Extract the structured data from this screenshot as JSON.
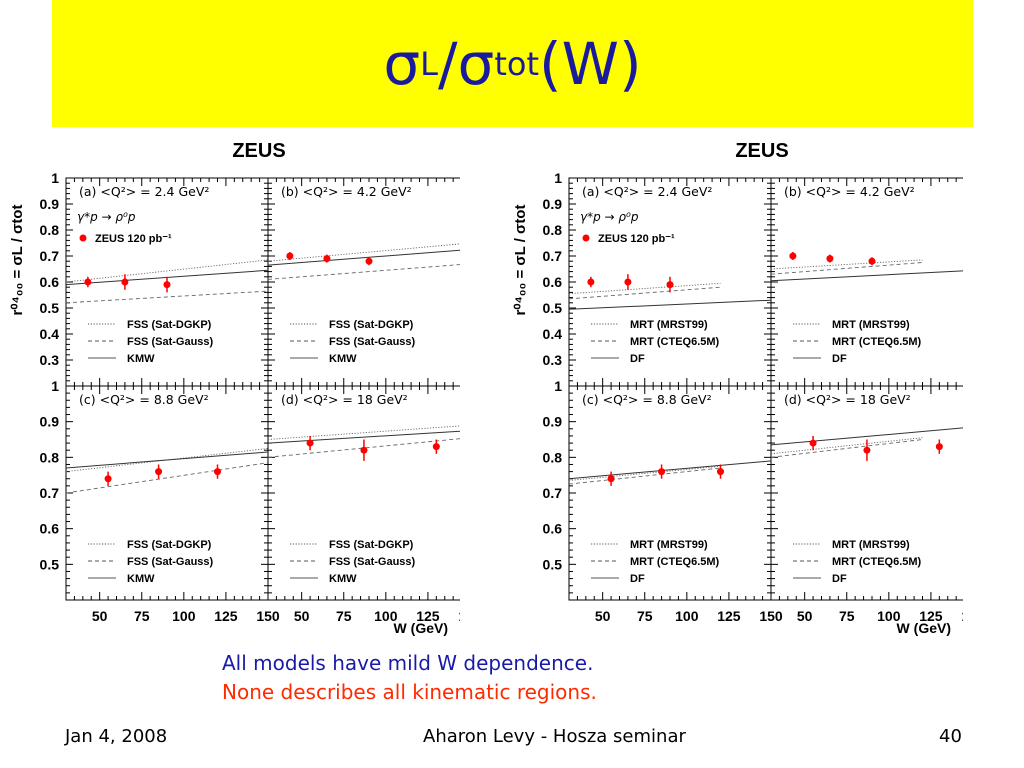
{
  "title": {
    "main": "σ",
    "sub1": "L",
    "slash": "/",
    "main2": "σ",
    "sub2": "tot",
    "tail": "(W)"
  },
  "conclusions": {
    "line1": "All models have mild W dependence.",
    "line2": "None describes all kinematic regions."
  },
  "footer": {
    "date": "Jan 4, 2008",
    "center": "Aharon Levy - Hosza seminar",
    "page": "40"
  },
  "colors": {
    "title_bg": "#ffff00",
    "title_text": "#1a1a9e",
    "data_points": "#ff0000"
  },
  "chart_data": [
    {
      "type": "scatter",
      "title": "ZEUS",
      "ylabel": "r⁰⁴₀₀ = σL / σtot",
      "xlabel": "W (GeV)",
      "xlim": [
        30,
        150
      ],
      "xticks": [
        50,
        75,
        100,
        125,
        150
      ],
      "process_label": "γ*p → ρ⁰p",
      "data_label": "ZEUS 120 pb⁻¹",
      "panels": [
        {
          "label": "(a)  <Q²> = 2.4 GeV²",
          "ylim": [
            0.2,
            1
          ],
          "yticks": [
            0.3,
            0.4,
            0.5,
            0.6,
            0.7,
            0.8,
            0.9,
            1
          ],
          "points": [
            {
              "x": 43,
              "y": 0.6,
              "err": 0.02
            },
            {
              "x": 65,
              "y": 0.6,
              "err": 0.03
            },
            {
              "x": 90,
              "y": 0.59,
              "err": 0.03
            }
          ],
          "series": [
            {
              "name": "FSS (Sat-DGKP)",
              "style": "dotted",
              "x": [
                30,
                150
              ],
              "y": [
                0.6,
                0.685
              ]
            },
            {
              "name": "FSS (Sat-Gauss)",
              "style": "dashed",
              "x": [
                30,
                150
              ],
              "y": [
                0.52,
                0.565
              ]
            },
            {
              "name": "KMW",
              "style": "solid",
              "x": [
                30,
                150
              ],
              "y": [
                0.59,
                0.645
              ]
            }
          ]
        },
        {
          "label": "(b)  <Q²> = 4.2 GeV²",
          "ylim": [
            0.2,
            1
          ],
          "yticks": [
            0.3,
            0.4,
            0.5,
            0.6,
            0.7,
            0.8,
            0.9,
            1
          ],
          "points": [
            {
              "x": 43,
              "y": 0.7,
              "err": 0.015
            },
            {
              "x": 65,
              "y": 0.69,
              "err": 0.015
            },
            {
              "x": 90,
              "y": 0.68,
              "err": 0.015
            }
          ],
          "series": [
            {
              "name": "FSS (Sat-DGKP)",
              "style": "dotted",
              "x": [
                30,
                150
              ],
              "y": [
                0.68,
                0.75
              ]
            },
            {
              "name": "FSS (Sat-Gauss)",
              "style": "dashed",
              "x": [
                30,
                150
              ],
              "y": [
                0.61,
                0.67
              ]
            },
            {
              "name": "KMW",
              "style": "solid",
              "x": [
                30,
                150
              ],
              "y": [
                0.665,
                0.725
              ]
            }
          ]
        },
        {
          "label": "(c)  <Q²> = 8.8 GeV²",
          "ylim": [
            0.4,
            1
          ],
          "yticks": [
            0.5,
            0.6,
            0.7,
            0.8,
            0.9,
            1
          ],
          "points": [
            {
              "x": 55,
              "y": 0.74,
              "err": 0.02
            },
            {
              "x": 85,
              "y": 0.76,
              "err": 0.02
            },
            {
              "x": 120,
              "y": 0.76,
              "err": 0.02
            }
          ],
          "series": [
            {
              "name": "FSS (Sat-DGKP)",
              "style": "dotted",
              "x": [
                30,
                150
              ],
              "y": [
                0.76,
                0.825
              ]
            },
            {
              "name": "FSS (Sat-Gauss)",
              "style": "dashed",
              "x": [
                30,
                150
              ],
              "y": [
                0.7,
                0.785
              ]
            },
            {
              "name": "KMW",
              "style": "solid",
              "x": [
                30,
                150
              ],
              "y": [
                0.77,
                0.815
              ]
            }
          ]
        },
        {
          "label": "(d)  <Q²> = 18 GeV²",
          "ylim": [
            0.4,
            1
          ],
          "yticks": [
            0.5,
            0.6,
            0.7,
            0.8,
            0.9,
            1
          ],
          "points": [
            {
              "x": 55,
              "y": 0.84,
              "err": 0.02
            },
            {
              "x": 87,
              "y": 0.82,
              "err": 0.03
            },
            {
              "x": 130,
              "y": 0.83,
              "err": 0.02
            }
          ],
          "series": [
            {
              "name": "FSS (Sat-DGKP)",
              "style": "dotted",
              "x": [
                30,
                150
              ],
              "y": [
                0.85,
                0.89
              ]
            },
            {
              "name": "FSS (Sat-Gauss)",
              "style": "dashed",
              "x": [
                30,
                150
              ],
              "y": [
                0.8,
                0.855
              ]
            },
            {
              "name": "KMW",
              "style": "solid",
              "x": [
                30,
                150
              ],
              "y": [
                0.84,
                0.875
              ]
            }
          ]
        }
      ]
    },
    {
      "type": "scatter",
      "title": "ZEUS",
      "ylabel": "r⁰⁴₀₀ = σL / σtot",
      "xlabel": "W (GeV)",
      "xlim": [
        30,
        150
      ],
      "xticks": [
        50,
        75,
        100,
        125,
        150
      ],
      "process_label": "γ*p → ρ⁰p",
      "data_label": "ZEUS 120 pb⁻¹",
      "panels": [
        {
          "label": "(a)  <Q²> = 2.4 GeV²",
          "ylim": [
            0.2,
            1
          ],
          "yticks": [
            0.3,
            0.4,
            0.5,
            0.6,
            0.7,
            0.8,
            0.9,
            1
          ],
          "points": [
            {
              "x": 43,
              "y": 0.6,
              "err": 0.02
            },
            {
              "x": 65,
              "y": 0.6,
              "err": 0.03
            },
            {
              "x": 90,
              "y": 0.59,
              "err": 0.03
            }
          ],
          "series": [
            {
              "name": "MRT (MRST99)",
              "style": "dotted",
              "x": [
                30,
                120
              ],
              "y": [
                0.555,
                0.595
              ]
            },
            {
              "name": "MRT (CTEQ6.5M)",
              "style": "dashed",
              "x": [
                30,
                120
              ],
              "y": [
                0.535,
                0.58
              ]
            },
            {
              "name": "DF",
              "style": "solid",
              "x": [
                30,
                150
              ],
              "y": [
                0.495,
                0.53
              ]
            }
          ]
        },
        {
          "label": "(b)  <Q²> = 4.2 GeV²",
          "ylim": [
            0.2,
            1
          ],
          "yticks": [
            0.3,
            0.4,
            0.5,
            0.6,
            0.7,
            0.8,
            0.9,
            1
          ],
          "points": [
            {
              "x": 43,
              "y": 0.7,
              "err": 0.015
            },
            {
              "x": 65,
              "y": 0.69,
              "err": 0.015
            },
            {
              "x": 90,
              "y": 0.68,
              "err": 0.015
            }
          ],
          "series": [
            {
              "name": "MRT (MRST99)",
              "style": "dotted",
              "x": [
                30,
                120
              ],
              "y": [
                0.65,
                0.685
              ]
            },
            {
              "name": "MRT (CTEQ6.5M)",
              "style": "dashed",
              "x": [
                30,
                120
              ],
              "y": [
                0.63,
                0.675
              ]
            },
            {
              "name": "DF",
              "style": "solid",
              "x": [
                30,
                150
              ],
              "y": [
                0.605,
                0.645
              ]
            }
          ]
        },
        {
          "label": "(c)   <Q²> = 8.8 GeV²",
          "ylim": [
            0.4,
            1
          ],
          "yticks": [
            0.5,
            0.6,
            0.7,
            0.8,
            0.9,
            1
          ],
          "points": [
            {
              "x": 55,
              "y": 0.74,
              "err": 0.02
            },
            {
              "x": 85,
              "y": 0.76,
              "err": 0.02
            },
            {
              "x": 120,
              "y": 0.76,
              "err": 0.02
            }
          ],
          "series": [
            {
              "name": "MRT (MRST99)",
              "style": "dotted",
              "x": [
                30,
                120
              ],
              "y": [
                0.735,
                0.775
              ]
            },
            {
              "name": "MRT (CTEQ6.5M)",
              "style": "dashed",
              "x": [
                30,
                120
              ],
              "y": [
                0.725,
                0.77
              ]
            },
            {
              "name": "DF",
              "style": "solid",
              "x": [
                30,
                150
              ],
              "y": [
                0.74,
                0.79
              ]
            }
          ]
        },
        {
          "label": "(d)   <Q²> = 18 GeV²",
          "ylim": [
            0.4,
            1
          ],
          "yticks": [
            0.5,
            0.6,
            0.7,
            0.8,
            0.9,
            1
          ],
          "points": [
            {
              "x": 55,
              "y": 0.84,
              "err": 0.02
            },
            {
              "x": 87,
              "y": 0.82,
              "err": 0.03
            },
            {
              "x": 130,
              "y": 0.83,
              "err": 0.02
            }
          ],
          "series": [
            {
              "name": "MRT (MRST99)",
              "style": "dotted",
              "x": [
                30,
                120
              ],
              "y": [
                0.81,
                0.855
              ]
            },
            {
              "name": "MRT (CTEQ6.5M)",
              "style": "dashed",
              "x": [
                30,
                120
              ],
              "y": [
                0.8,
                0.85
              ]
            },
            {
              "name": "DF",
              "style": "solid",
              "x": [
                30,
                150
              ],
              "y": [
                0.835,
                0.885
              ]
            }
          ]
        }
      ]
    }
  ]
}
